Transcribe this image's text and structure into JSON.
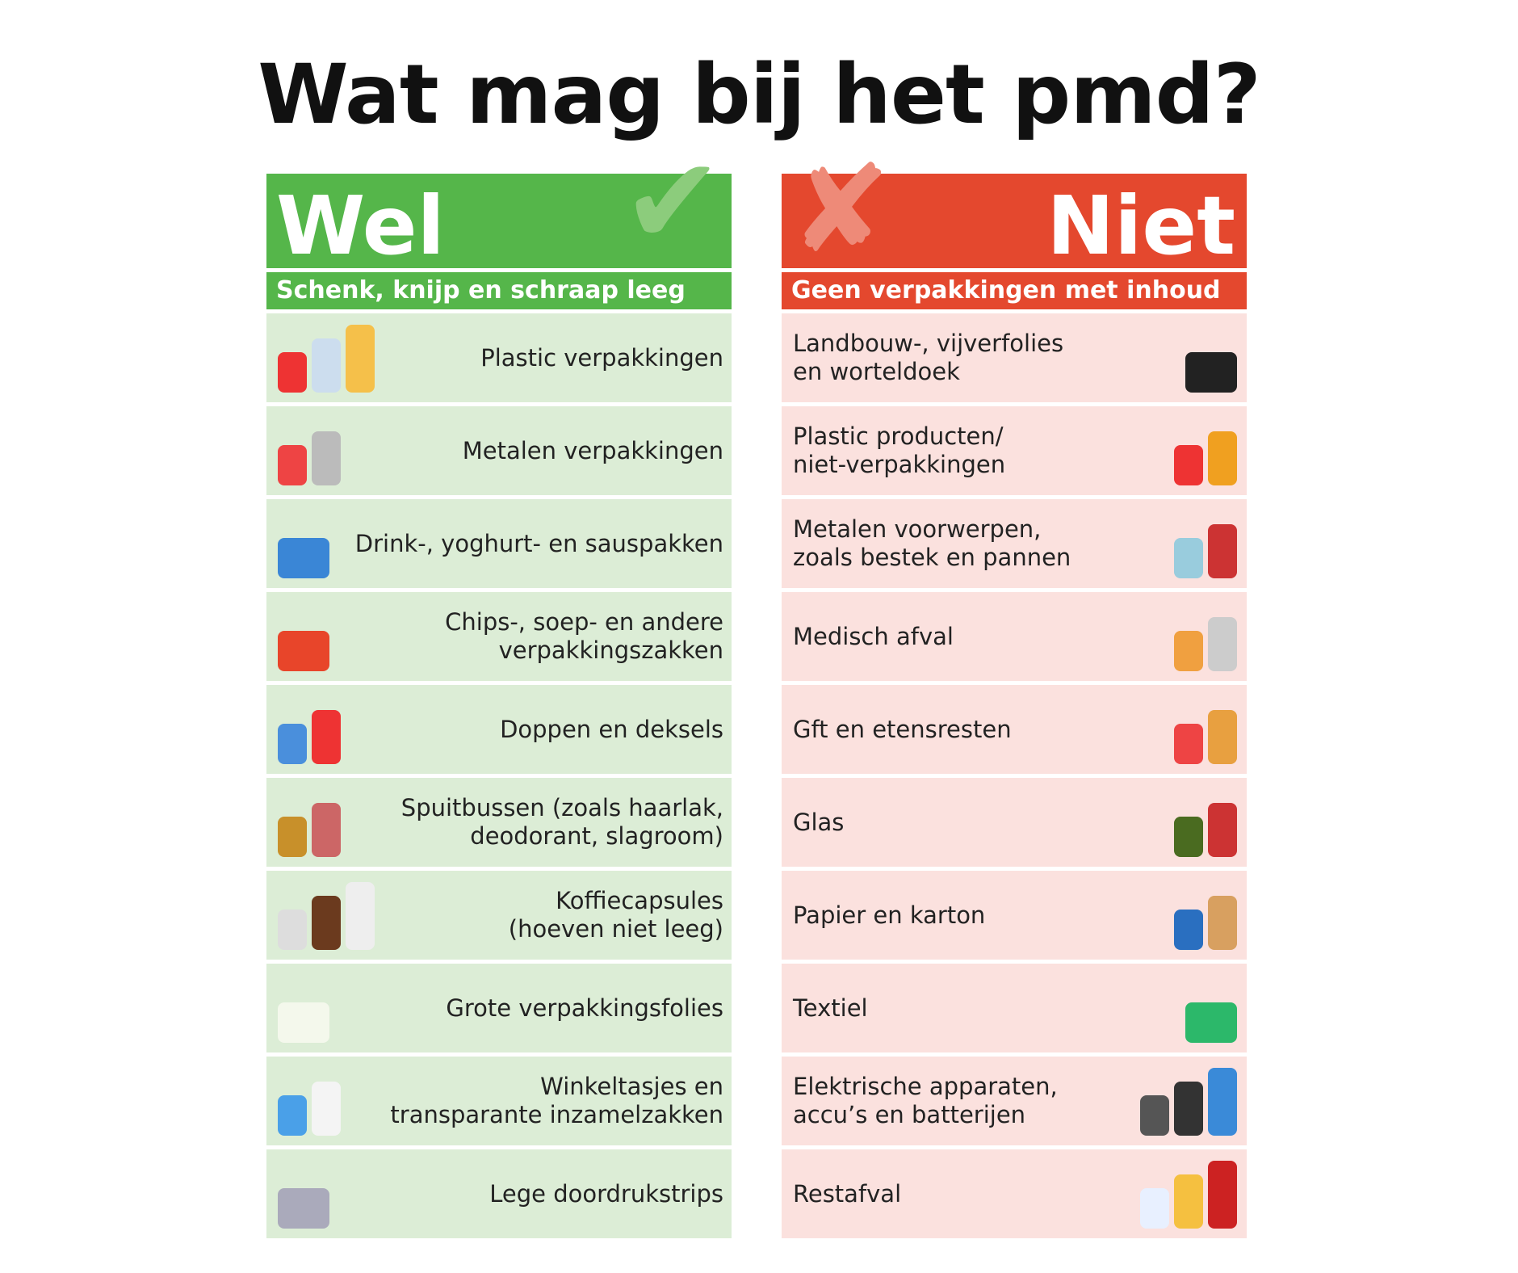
{
  "title": "Wat mag bij het pmd?",
  "wel": {
    "heading": "Wel",
    "subheading": "Schenk, knijp en schraap leeg",
    "items": [
      {
        "label": "Plastic verpakkingen",
        "icon": "plastic-bottles-icon"
      },
      {
        "label": "Metalen verpakkingen",
        "icon": "tin-can-icon"
      },
      {
        "label": "Drink-, yoghurt- en sauspakken",
        "icon": "drink-carton-icon"
      },
      {
        "label": "Chips-, soep- en andere\nverpakkingszakken",
        "icon": "chips-bag-icon"
      },
      {
        "label": "Doppen en deksels",
        "icon": "bottle-caps-icon"
      },
      {
        "label": "Spuitbussen (zoals haarlak,\ndeodorant, slagroom)",
        "icon": "spray-can-icon"
      },
      {
        "label": "Koffiecapsules\n(hoeven niet leeg)",
        "icon": "coffee-capsules-icon"
      },
      {
        "label": "Grote verpakkingsfolies",
        "icon": "plastic-foil-icon"
      },
      {
        "label": "Winkeltasjes en\ntransparante inzamelzakken",
        "icon": "plastic-bags-icon"
      },
      {
        "label": "Lege doordrukstrips",
        "icon": "blister-pack-icon"
      }
    ]
  },
  "niet": {
    "heading": "Niet",
    "subheading": "Geen verpakkingen met inhoud",
    "items": [
      {
        "label": "Landbouw-, vijverfolies\nen worteldoek",
        "icon": "black-foil-icon"
      },
      {
        "label": "Plastic producten/\nniet-verpakkingen",
        "icon": "toy-and-container-icon"
      },
      {
        "label": "Metalen voorwerpen,\nzoals bestek en pannen",
        "icon": "cutlery-pan-icon"
      },
      {
        "label": "Medisch afval",
        "icon": "medical-waste-icon"
      },
      {
        "label": "Gft en etensresten",
        "icon": "food-waste-icon"
      },
      {
        "label": "Glas",
        "icon": "glass-bottle-jar-icon"
      },
      {
        "label": "Papier en karton",
        "icon": "cardboard-box-icon"
      },
      {
        "label": "Textiel",
        "icon": "sweater-icon"
      },
      {
        "label": "Elektrische apparaten,\naccu’s en batterijen",
        "icon": "batteries-hairdryer-icon"
      },
      {
        "label": "Restafval",
        "icon": "diaper-sponge-icon"
      }
    ]
  },
  "colors": {
    "wel": "#55b64a",
    "wel_row": "#dcedd6",
    "niet": "#e4482e",
    "niet_row": "#fbe1de"
  }
}
